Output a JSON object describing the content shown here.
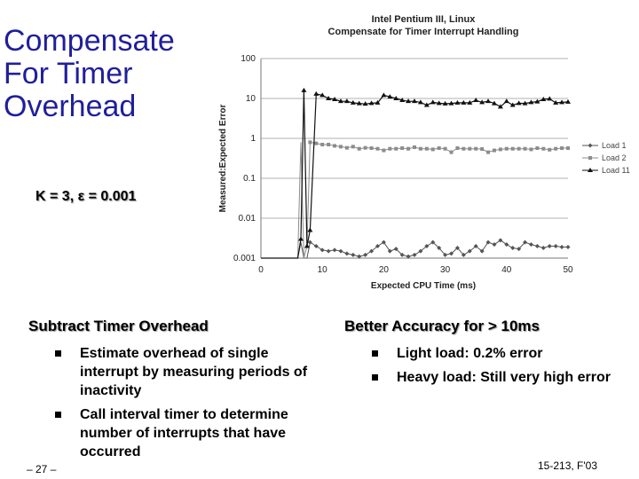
{
  "slide": {
    "title_lines": [
      "Compensate",
      "For Timer",
      "Overhead"
    ],
    "k_line": "K = 3, ε = 0.001",
    "left_section": {
      "heading": "Subtract Timer Overhead",
      "bullets": [
        "Estimate overhead of single interrupt by measuring periods of inactivity",
        "Call interval timer to determine number of interrupts that have occurred"
      ]
    },
    "right_section": {
      "heading": "Better Accuracy for > 10ms",
      "bullets": [
        "Light load: 0.2% error",
        "Heavy load: Still very high error"
      ]
    },
    "footer_left": "– 27 –",
    "footer_right": "15-213, F'03"
  },
  "chart_data": {
    "type": "line",
    "title": "Intel Pentium III, Linux",
    "subtitle": "Compensate for Timer Interrupt Handling",
    "xlabel": "Expected CPU Time (ms)",
    "ylabel": "Measured:Expected Error",
    "x_scale": "linear",
    "y_scale": "log",
    "xlim": [
      0,
      50
    ],
    "ylim": [
      0.001,
      100
    ],
    "x_ticks": [
      "0",
      "10",
      "20",
      "30",
      "40",
      "50"
    ],
    "y_ticks": [
      "100",
      "10",
      "1",
      "0.1",
      "0.01",
      "0.001"
    ],
    "grid": "horizontal",
    "legend_position": "right",
    "series": [
      {
        "name": "Load 1",
        "color": "#555555",
        "marker": "diamond",
        "x": [
          0,
          0.5,
          1,
          1.5,
          2,
          2.5,
          3,
          3.5,
          4,
          4.5,
          5,
          5.5,
          6,
          6.5,
          7,
          7.5,
          8,
          9,
          10,
          11,
          12,
          13,
          14,
          15,
          16,
          17,
          18,
          19,
          20,
          21,
          22,
          23,
          24,
          25,
          26,
          27,
          28,
          29,
          30,
          31,
          32,
          33,
          34,
          35,
          36,
          37,
          38,
          39,
          40,
          41,
          42,
          43,
          44,
          45,
          46,
          47,
          48,
          49,
          50
        ],
        "y": [
          0.001,
          0.001,
          0.001,
          0.001,
          0.001,
          0.001,
          0.001,
          0.001,
          0.001,
          0.001,
          0.001,
          0.001,
          0.001,
          0.0025,
          0.001,
          0.001,
          0.0025,
          0.002,
          0.0016,
          0.0015,
          0.0016,
          0.0015,
          0.0013,
          0.0012,
          0.0011,
          0.0012,
          0.0015,
          0.002,
          0.0025,
          0.0015,
          0.0017,
          0.0012,
          0.0011,
          0.0012,
          0.0015,
          0.002,
          0.0025,
          0.0018,
          0.0012,
          0.0013,
          0.0018,
          0.0012,
          0.0015,
          0.002,
          0.0015,
          0.0025,
          0.0022,
          0.0028,
          0.0022,
          0.0018,
          0.0017,
          0.0025,
          0.0022,
          0.002,
          0.0018,
          0.002,
          0.002,
          0.0019,
          0.0019
        ]
      },
      {
        "name": "Load 2",
        "color": "#8c8c8c",
        "marker": "square",
        "x": [
          0,
          0.5,
          1,
          1.5,
          2,
          2.5,
          3,
          3.5,
          4,
          4.5,
          5,
          5.5,
          6,
          6.5,
          7,
          7.5,
          8,
          9,
          10,
          11,
          12,
          13,
          14,
          15,
          16,
          17,
          18,
          19,
          20,
          21,
          22,
          23,
          24,
          25,
          26,
          27,
          28,
          29,
          30,
          31,
          32,
          33,
          34,
          35,
          36,
          37,
          38,
          39,
          40,
          41,
          42,
          43,
          44,
          45,
          46,
          47,
          48,
          49,
          50
        ],
        "y": [
          0.001,
          0.001,
          0.001,
          0.001,
          0.001,
          0.001,
          0.001,
          0.001,
          0.001,
          0.001,
          0.001,
          0.001,
          0.001,
          0.8,
          0.001,
          0.002,
          0.8,
          0.75,
          0.7,
          0.7,
          0.65,
          0.62,
          0.58,
          0.62,
          0.55,
          0.58,
          0.57,
          0.55,
          0.5,
          0.55,
          0.55,
          0.57,
          0.55,
          0.6,
          0.55,
          0.55,
          0.53,
          0.57,
          0.55,
          0.45,
          0.57,
          0.55,
          0.55,
          0.55,
          0.54,
          0.45,
          0.5,
          0.53,
          0.55,
          0.55,
          0.55,
          0.55,
          0.53,
          0.57,
          0.55,
          0.52,
          0.55,
          0.57,
          0.57
        ]
      },
      {
        "name": "Load 11",
        "color": "#111111",
        "marker": "triangle",
        "x": [
          0,
          0.5,
          1,
          1.5,
          2,
          2.5,
          3,
          3.5,
          4,
          4.5,
          5,
          5.5,
          6,
          6.5,
          7,
          7.5,
          8,
          9,
          10,
          11,
          12,
          13,
          14,
          15,
          16,
          17,
          18,
          19,
          20,
          21,
          22,
          23,
          24,
          25,
          26,
          27,
          28,
          29,
          30,
          31,
          32,
          33,
          34,
          35,
          36,
          37,
          38,
          39,
          40,
          41,
          42,
          43,
          44,
          45,
          46,
          47,
          48,
          49,
          50
        ],
        "y": [
          0.001,
          0.001,
          0.001,
          0.001,
          0.001,
          0.001,
          0.001,
          0.001,
          0.001,
          0.001,
          0.001,
          0.001,
          0.001,
          0.003,
          16,
          0.002,
          0.005,
          13,
          12,
          10,
          9.5,
          8.5,
          8.5,
          7.8,
          7.5,
          7.3,
          7.6,
          7.8,
          12,
          11,
          10,
          9,
          8.5,
          8.5,
          8,
          6.8,
          8,
          7.6,
          7.4,
          7.5,
          7.8,
          7.8,
          7.8,
          9,
          8,
          8.5,
          7.5,
          6.2,
          8.5,
          6.8,
          7.6,
          7.5,
          8,
          8.3,
          9.5,
          9.8,
          7.8,
          8,
          8.2
        ]
      }
    ]
  }
}
